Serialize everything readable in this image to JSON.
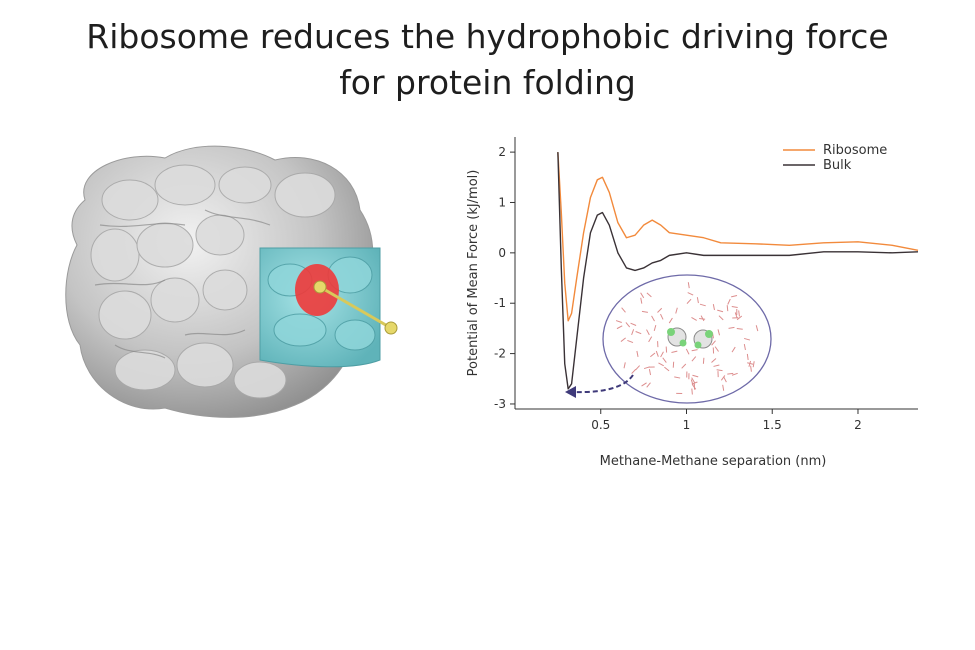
{
  "slide": {
    "title_line1": "Ribosome reduces the hydrophobic driving force",
    "title_line2": "for protein folding"
  },
  "colors": {
    "ribosome_series": "#f28a3c",
    "bulk_series": "#3a3236",
    "protein_surface": "#c8c8c8",
    "tunnel_cyan": "#7ecfd4",
    "hotspot_red": "#ee3a3a",
    "ligand_yellow": "#e6d86a",
    "arrow": "#3f3a7a"
  },
  "icons": {
    "ribosome_render": "ribosome-surface-icon",
    "inset_render": "water-methane-box-icon"
  },
  "chart_data": {
    "type": "line",
    "title": "",
    "xlabel": "Methane-Methane separation (nm)",
    "ylabel": "Potential of Mean Force (kJ/mol)",
    "xlim": [
      0,
      2.35
    ],
    "ylim": [
      -3.1,
      2.3
    ],
    "x_ticks": [
      0.5,
      1,
      1.5,
      2
    ],
    "x_tick_labels": [
      "0.5",
      "1",
      "1.5",
      "2"
    ],
    "y_ticks": [
      2,
      1,
      0,
      -1,
      -2,
      -3
    ],
    "y_tick_labels": [
      "2",
      "1",
      "0",
      "-1",
      "-2",
      "-3"
    ],
    "grid": false,
    "legend": "top-right",
    "series": [
      {
        "name": "Ribosome",
        "x": [
          0.25,
          0.27,
          0.29,
          0.31,
          0.33,
          0.36,
          0.4,
          0.44,
          0.48,
          0.51,
          0.55,
          0.6,
          0.65,
          0.7,
          0.75,
          0.8,
          0.85,
          0.9,
          1.0,
          1.1,
          1.2,
          1.4,
          1.6,
          1.8,
          2.0,
          2.2,
          2.35
        ],
        "y": [
          2.0,
          0.8,
          -0.6,
          -1.35,
          -1.2,
          -0.5,
          0.4,
          1.1,
          1.45,
          1.5,
          1.2,
          0.6,
          0.3,
          0.35,
          0.55,
          0.65,
          0.55,
          0.4,
          0.35,
          0.3,
          0.2,
          0.18,
          0.15,
          0.2,
          0.22,
          0.15,
          0.05
        ]
      },
      {
        "name": "Bulk",
        "x": [
          0.25,
          0.27,
          0.29,
          0.31,
          0.33,
          0.36,
          0.4,
          0.44,
          0.48,
          0.51,
          0.55,
          0.6,
          0.65,
          0.7,
          0.75,
          0.8,
          0.85,
          0.9,
          1.0,
          1.1,
          1.2,
          1.4,
          1.6,
          1.8,
          2.0,
          2.2,
          2.35
        ],
        "y": [
          2.0,
          -0.3,
          -2.2,
          -2.7,
          -2.6,
          -1.7,
          -0.5,
          0.4,
          0.75,
          0.8,
          0.55,
          0.0,
          -0.3,
          -0.35,
          -0.3,
          -0.2,
          -0.15,
          -0.05,
          0.0,
          -0.05,
          -0.05,
          -0.05,
          -0.05,
          0.02,
          0.02,
          0.0,
          0.02
        ]
      }
    ]
  }
}
